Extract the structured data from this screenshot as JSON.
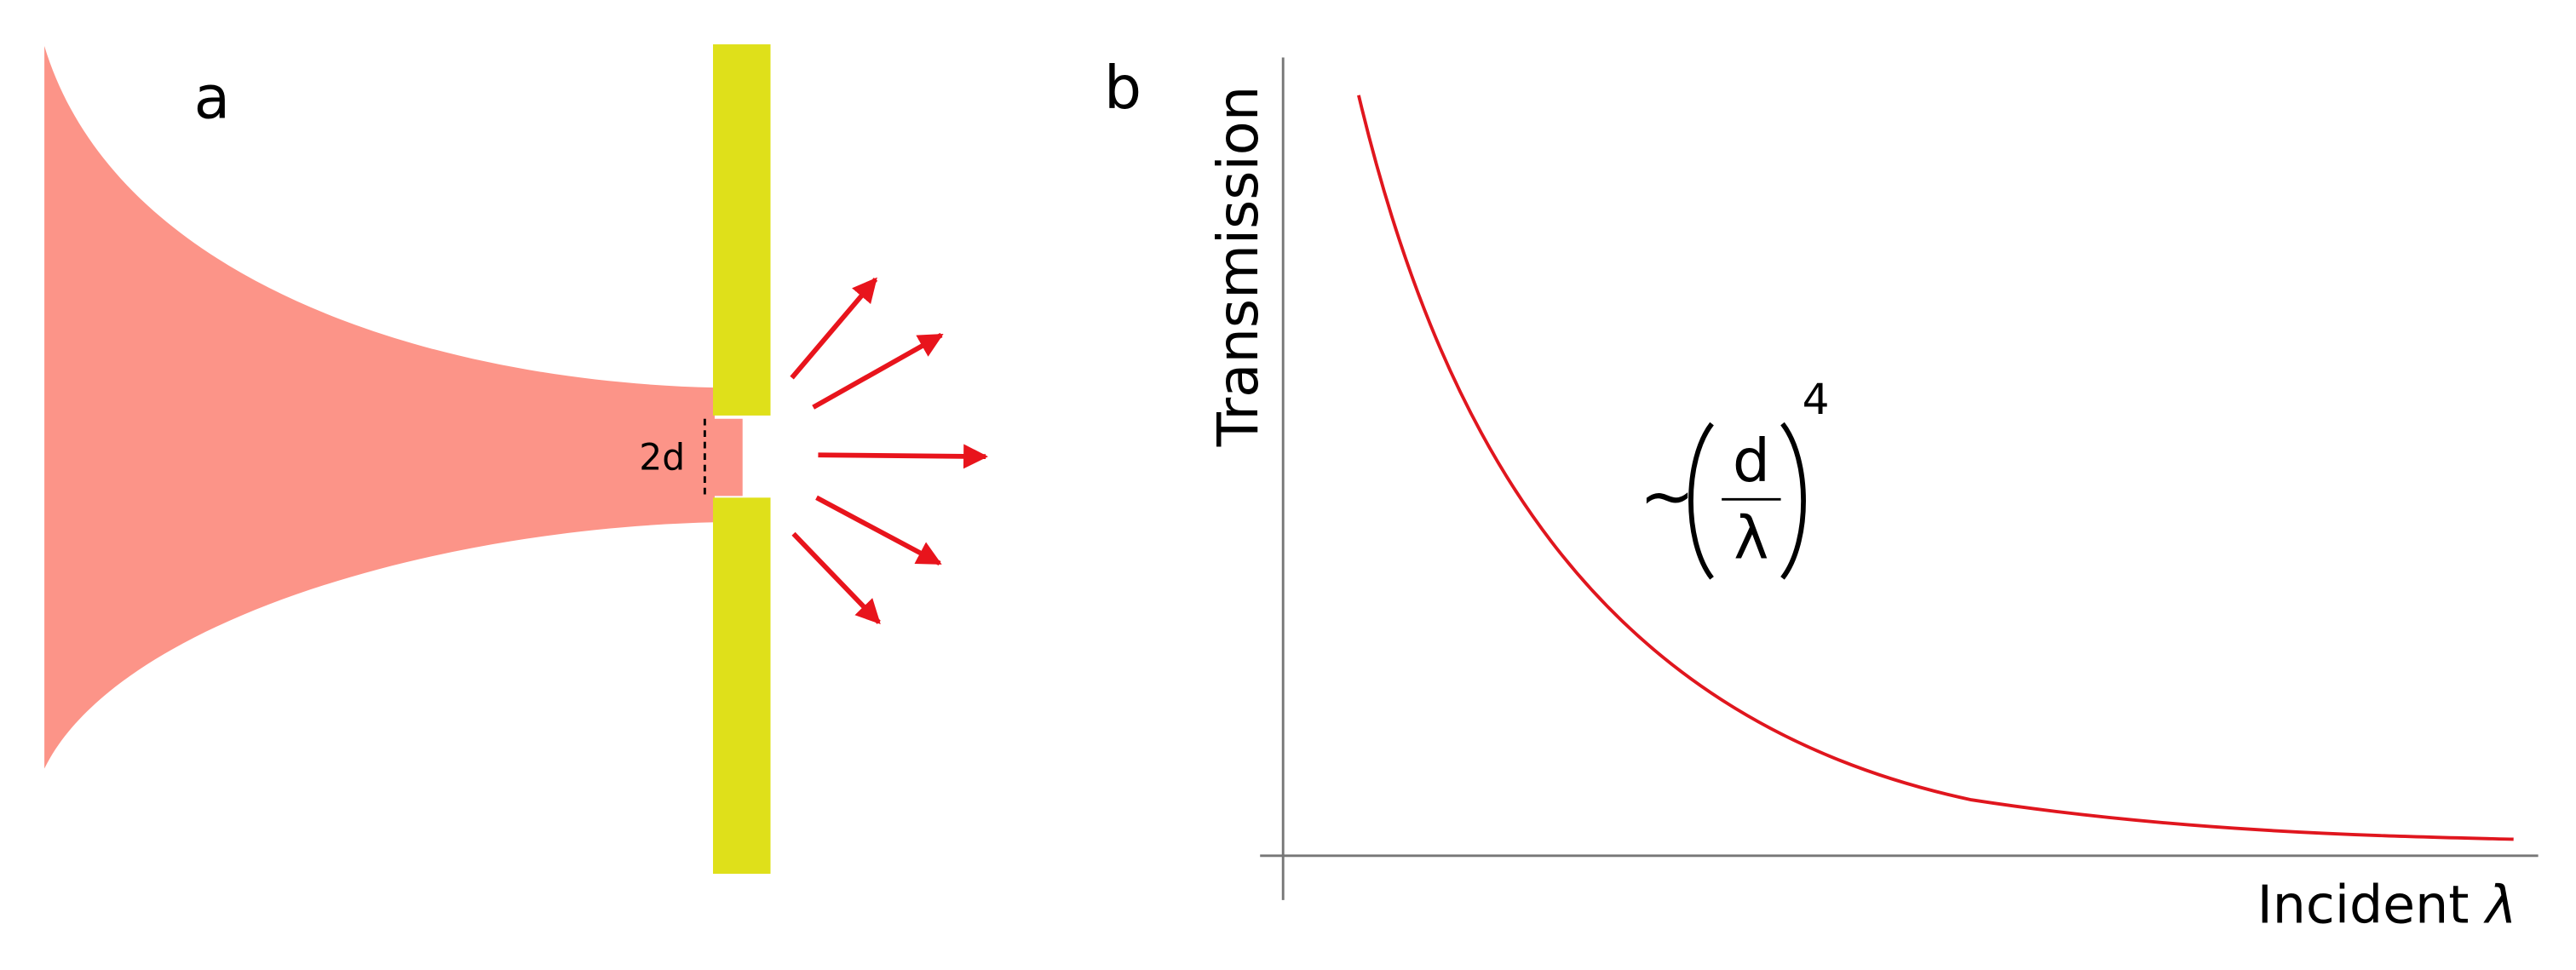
{
  "panel_a": {
    "label": "a",
    "gap_label": "2d"
  },
  "panel_b": {
    "label": "b",
    "y_axis_label": "Transmission",
    "x_axis_label": {
      "text": "Incident ",
      "symbol": "λ"
    },
    "formula": {
      "prefix": "~",
      "numerator": "d",
      "denominator": "λ",
      "exponent": "4"
    }
  }
}
